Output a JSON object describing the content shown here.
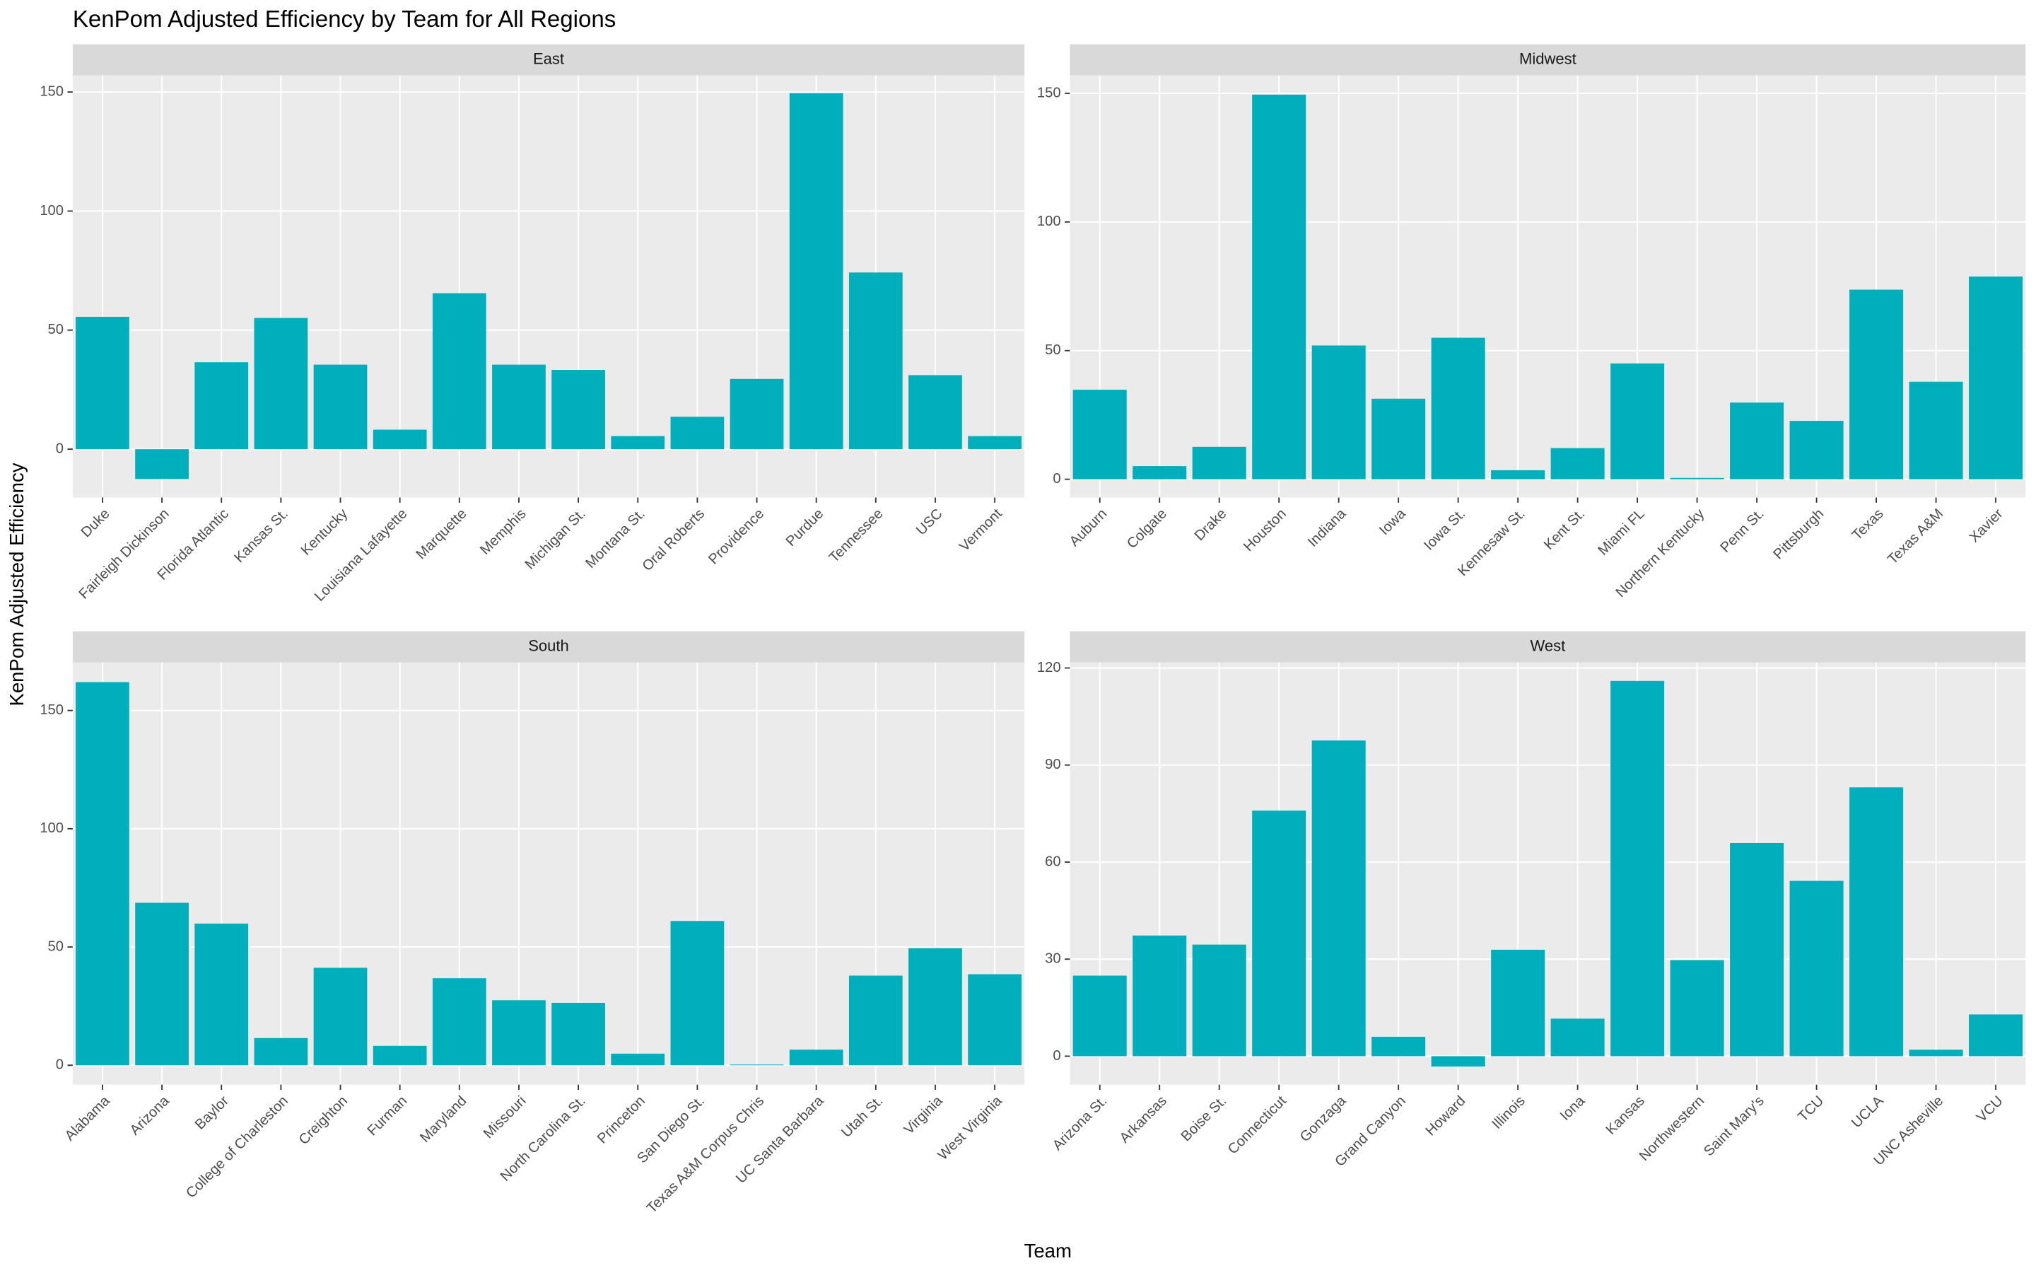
{
  "title": "KenPom Adjusted Efficiency by Team for All Regions",
  "x_label": "Team",
  "y_label": "KenPom Adjusted Efficiency",
  "chart_data": [
    {
      "type": "bar",
      "title": "East",
      "color": "#00afbb",
      "grid": true,
      "categories": [
        "Duke",
        "Fairleigh Dickinson",
        "Florida Atlantic",
        "Kansas St.",
        "Kentucky",
        "Louisiana Lafayette",
        "Marquette",
        "Memphis",
        "Michigan St.",
        "Montana St.",
        "Oral Roberts",
        "Providence",
        "Purdue",
        "Tennessee",
        "USC",
        "Vermont"
      ],
      "values": [
        55.6,
        -12.5,
        36.5,
        55.1,
        35.5,
        8.2,
        65.5,
        35.5,
        33.3,
        5.5,
        13.6,
        29.5,
        149.5,
        74.2,
        31.1,
        5.5
      ],
      "ylim": [
        -20.3,
        157
      ],
      "yticks": [
        0,
        50,
        100,
        150
      ]
    },
    {
      "type": "bar",
      "title": "Midwest",
      "color": "#00afbb",
      "grid": true,
      "categories": [
        "Auburn",
        "Colgate",
        "Drake",
        "Houston",
        "Indiana",
        "Iowa",
        "Iowa St.",
        "Kennesaw St.",
        "Kent St.",
        "Miami FL",
        "Northern Kentucky",
        "Penn St.",
        "Pittsburgh",
        "Texas",
        "Texas A&M",
        "Xavier"
      ],
      "values": [
        34.8,
        5.1,
        12.6,
        149.5,
        52,
        31.3,
        55,
        3.5,
        12.1,
        45,
        0.5,
        29.8,
        22.7,
        73.7,
        37.9,
        78.8
      ],
      "ylim": [
        -7.1,
        157
      ],
      "yticks": [
        0,
        50,
        100,
        150
      ]
    },
    {
      "type": "bar",
      "title": "South",
      "color": "#00afbb",
      "grid": true,
      "categories": [
        "Alabama",
        "Arizona",
        "Baylor",
        "College of Charleston",
        "Creighton",
        "Furman",
        "Maryland",
        "Missouri",
        "North Carolina St.",
        "Princeton",
        "San Diego St.",
        "Texas A&M Corpus Chris",
        "UC Santa Barbara",
        "Utah St.",
        "Virginia",
        "West Virginia"
      ],
      "values": [
        162,
        68.7,
        59.9,
        11.5,
        41.2,
        8.2,
        36.8,
        27.5,
        26.4,
        4.9,
        61,
        0.3,
        6.6,
        37.9,
        49.5,
        38.5
      ],
      "ylim": [
        -8.2,
        170.3
      ],
      "yticks": [
        0,
        50,
        100,
        150
      ]
    },
    {
      "type": "bar",
      "title": "West",
      "color": "#00afbb",
      "grid": true,
      "categories": [
        "Arizona St.",
        "Arkansas",
        "Boise St.",
        "Connecticut",
        "Gonzaga",
        "Grand Canyon",
        "Howard",
        "Illinois",
        "Iona",
        "Kansas",
        "Northwestern",
        "Saint Mary's",
        "TCU",
        "UCLA",
        "UNC Asheville",
        "VCU"
      ],
      "values": [
        24.9,
        37.3,
        34.5,
        75.9,
        97.6,
        6,
        -3.2,
        32.9,
        11.6,
        116,
        29.7,
        65.9,
        54.2,
        83.1,
        2,
        12.9
      ],
      "ylim": [
        -8.8,
        121.7
      ],
      "yticks": [
        0,
        30,
        60,
        90,
        120
      ]
    }
  ]
}
